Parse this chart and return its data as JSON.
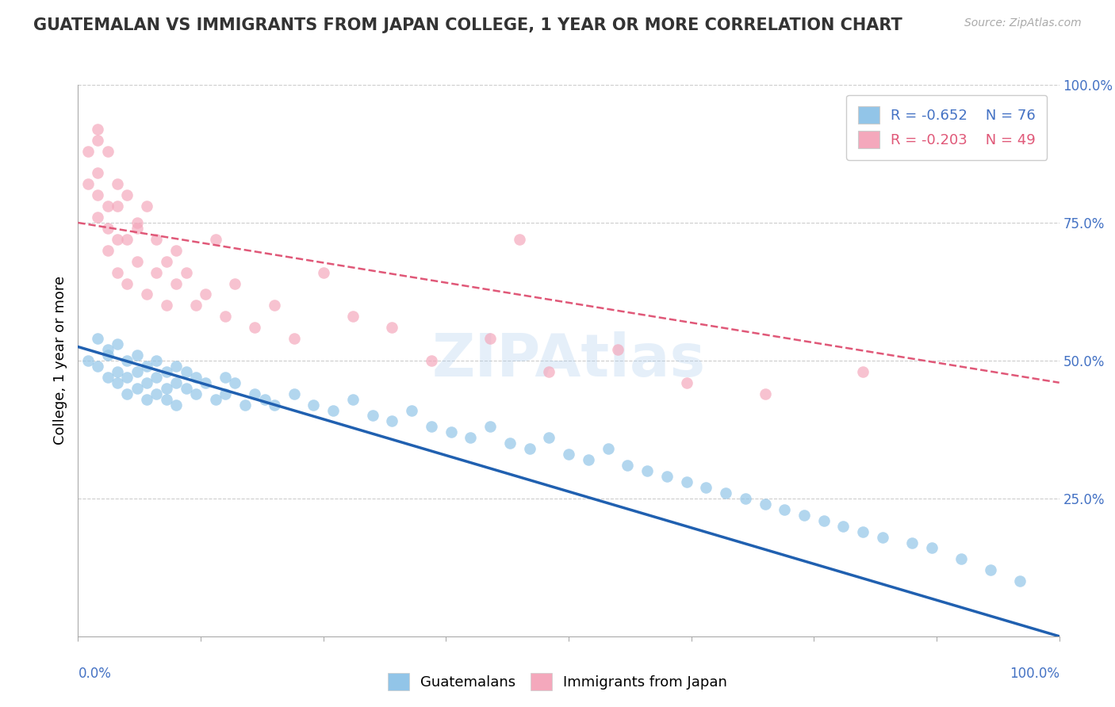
{
  "title": "GUATEMALAN VS IMMIGRANTS FROM JAPAN COLLEGE, 1 YEAR OR MORE CORRELATION CHART",
  "source": "Source: ZipAtlas.com",
  "ylabel": "College, 1 year or more",
  "xlim": [
    0.0,
    1.0
  ],
  "ylim": [
    0.0,
    1.0
  ],
  "y_tick_labels": [
    "25.0%",
    "50.0%",
    "75.0%",
    "100.0%"
  ],
  "y_tick_positions": [
    0.25,
    0.5,
    0.75,
    1.0
  ],
  "blue_color": "#92C5E8",
  "pink_color": "#F4A8BC",
  "blue_line_color": "#2060B0",
  "pink_line_color": "#E05878",
  "blue_trendline_x": [
    0.0,
    1.0
  ],
  "blue_trendline_y": [
    0.525,
    0.0
  ],
  "pink_trendline_x": [
    0.0,
    1.0
  ],
  "pink_trendline_y": [
    0.75,
    0.46
  ],
  "blue_scatter_x": [
    0.01,
    0.02,
    0.02,
    0.03,
    0.03,
    0.03,
    0.04,
    0.04,
    0.04,
    0.05,
    0.05,
    0.05,
    0.06,
    0.06,
    0.06,
    0.07,
    0.07,
    0.07,
    0.08,
    0.08,
    0.08,
    0.09,
    0.09,
    0.09,
    0.1,
    0.1,
    0.1,
    0.11,
    0.11,
    0.12,
    0.12,
    0.13,
    0.14,
    0.15,
    0.15,
    0.16,
    0.17,
    0.18,
    0.19,
    0.2,
    0.22,
    0.24,
    0.26,
    0.28,
    0.3,
    0.32,
    0.34,
    0.36,
    0.38,
    0.4,
    0.42,
    0.44,
    0.46,
    0.48,
    0.5,
    0.52,
    0.54,
    0.56,
    0.58,
    0.6,
    0.62,
    0.64,
    0.66,
    0.68,
    0.7,
    0.72,
    0.74,
    0.76,
    0.78,
    0.8,
    0.82,
    0.85,
    0.87,
    0.9,
    0.93,
    0.96
  ],
  "blue_scatter_y": [
    0.5,
    0.54,
    0.49,
    0.51,
    0.47,
    0.52,
    0.48,
    0.53,
    0.46,
    0.47,
    0.5,
    0.44,
    0.48,
    0.51,
    0.45,
    0.46,
    0.49,
    0.43,
    0.47,
    0.5,
    0.44,
    0.45,
    0.48,
    0.43,
    0.46,
    0.49,
    0.42,
    0.45,
    0.48,
    0.44,
    0.47,
    0.46,
    0.43,
    0.47,
    0.44,
    0.46,
    0.42,
    0.44,
    0.43,
    0.42,
    0.44,
    0.42,
    0.41,
    0.43,
    0.4,
    0.39,
    0.41,
    0.38,
    0.37,
    0.36,
    0.38,
    0.35,
    0.34,
    0.36,
    0.33,
    0.32,
    0.34,
    0.31,
    0.3,
    0.29,
    0.28,
    0.27,
    0.26,
    0.25,
    0.24,
    0.23,
    0.22,
    0.21,
    0.2,
    0.19,
    0.18,
    0.17,
    0.16,
    0.14,
    0.12,
    0.1
  ],
  "pink_scatter_x": [
    0.01,
    0.01,
    0.02,
    0.02,
    0.02,
    0.02,
    0.02,
    0.03,
    0.03,
    0.03,
    0.03,
    0.04,
    0.04,
    0.04,
    0.04,
    0.05,
    0.05,
    0.05,
    0.06,
    0.06,
    0.06,
    0.07,
    0.07,
    0.08,
    0.08,
    0.09,
    0.09,
    0.1,
    0.1,
    0.11,
    0.12,
    0.13,
    0.14,
    0.15,
    0.16,
    0.18,
    0.2,
    0.22,
    0.25,
    0.28,
    0.32,
    0.36,
    0.42,
    0.48,
    0.55,
    0.62,
    0.7,
    0.8,
    0.45
  ],
  "pink_scatter_y": [
    0.88,
    0.82,
    0.92,
    0.84,
    0.76,
    0.9,
    0.8,
    0.88,
    0.78,
    0.7,
    0.74,
    0.82,
    0.72,
    0.78,
    0.66,
    0.8,
    0.72,
    0.64,
    0.75,
    0.68,
    0.74,
    0.78,
    0.62,
    0.72,
    0.66,
    0.68,
    0.6,
    0.7,
    0.64,
    0.66,
    0.6,
    0.62,
    0.72,
    0.58,
    0.64,
    0.56,
    0.6,
    0.54,
    0.66,
    0.58,
    0.56,
    0.5,
    0.54,
    0.48,
    0.52,
    0.46,
    0.44,
    0.48,
    0.72
  ]
}
